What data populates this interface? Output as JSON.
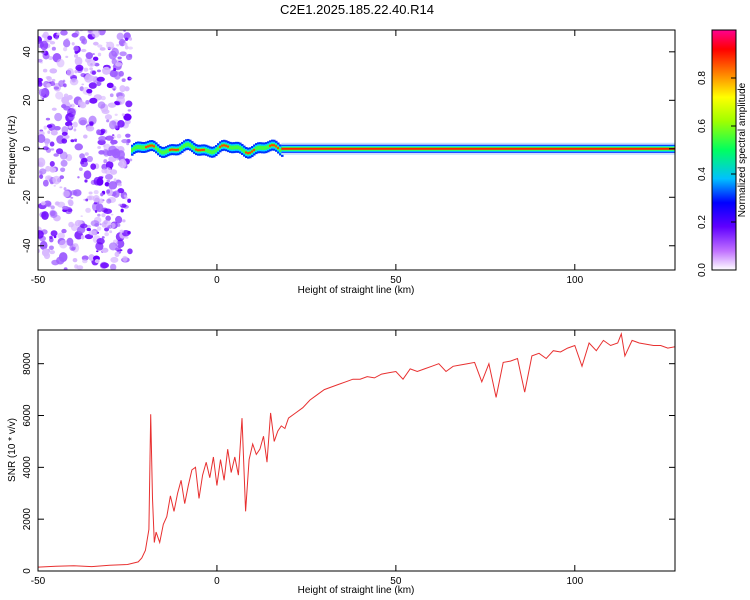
{
  "figure": {
    "title": "C2E1.2025.185.22.40.R14"
  },
  "chart_data": [
    {
      "type": "heatmap",
      "xlabel": "Height of straight line (km)",
      "ylabel": "Frequency (Hz)",
      "xlim": [
        -50,
        128
      ],
      "ylim": [
        -50,
        49
      ],
      "xticks": [
        "-50",
        "0",
        "50",
        "100"
      ],
      "yticks": [
        "-40",
        "-20",
        "0",
        "20",
        "40"
      ],
      "xtick_values": [
        -50,
        0,
        50,
        100
      ],
      "ytick_values": [
        -40,
        -20,
        0,
        20,
        40
      ],
      "regions": [
        {
          "x": [
            -50,
            -24
          ],
          "y": [
            -50,
            49
          ],
          "description": "scattered noise"
        },
        {
          "x": [
            -24,
            18
          ],
          "y": [
            -4,
            4
          ],
          "description": "wavy band near 0 Hz"
        },
        {
          "x": [
            18,
            128
          ],
          "y": [
            -1.5,
            1.5
          ],
          "description": "steady band at 0 Hz"
        }
      ],
      "colorbar": {
        "label": "Normalized spectral amplitude",
        "ticks": [
          "0.0",
          "0.2",
          "0.4",
          "0.6",
          "0.8"
        ],
        "tick_values": [
          0.0,
          0.2,
          0.4,
          0.6,
          0.8
        ],
        "range": [
          0,
          1
        ],
        "colors": [
          "#ffffff",
          "#a000ff",
          "#0000ff",
          "#00ffff",
          "#00ff00",
          "#ffff00",
          "#ff8000",
          "#ff0000",
          "#ff0080"
        ]
      }
    },
    {
      "type": "line",
      "xlabel": "Height of straight line (km)",
      "ylabel": "SNR (10 * v/v)",
      "xlim": [
        -50,
        128
      ],
      "ylim": [
        0,
        9300
      ],
      "xticks": [
        "-50",
        "0",
        "50",
        "100"
      ],
      "yticks": [
        "0",
        "2000",
        "4000",
        "6000",
        "8000"
      ],
      "xtick_values": [
        -50,
        0,
        50,
        100
      ],
      "ytick_values": [
        0,
        2000,
        4000,
        6000,
        8000
      ],
      "color": "#e83030",
      "series": [
        {
          "x": [
            -50,
            -45,
            -40,
            -35,
            -30,
            -25,
            -22,
            -21,
            -20,
            -19,
            -18.5,
            -18,
            -17.5,
            -17,
            -16,
            -15,
            -14,
            -13,
            -12,
            -11,
            -10,
            -9,
            -8,
            -7,
            -6,
            -5,
            -4,
            -3,
            -2,
            -1,
            0,
            1,
            2,
            3,
            4,
            5,
            6,
            7,
            8,
            9,
            10,
            11,
            12,
            13,
            14,
            15,
            16,
            17,
            18,
            19,
            20,
            22,
            24,
            26,
            28,
            30,
            32,
            34,
            36,
            38,
            40,
            42,
            44,
            46,
            48,
            50,
            52,
            54,
            56,
            58,
            60,
            62,
            64,
            66,
            68,
            70,
            72,
            74,
            76,
            78,
            80,
            82,
            84,
            86,
            88,
            90,
            92,
            94,
            96,
            98,
            100,
            102,
            104,
            106,
            108,
            110,
            112,
            113,
            114,
            115,
            116,
            118,
            120,
            122,
            124,
            126,
            128
          ],
          "y": [
            150,
            180,
            200,
            170,
            220,
            250,
            350,
            500,
            800,
            1600,
            6050,
            2800,
            1100,
            1500,
            1100,
            1800,
            2100,
            2900,
            2300,
            3000,
            3500,
            2600,
            3300,
            3900,
            4000,
            2800,
            3700,
            4200,
            3600,
            4400,
            3300,
            4300,
            3500,
            4700,
            3800,
            4400,
            3700,
            5900,
            2300,
            4300,
            4900,
            4500,
            4700,
            5200,
            4200,
            6100,
            5000,
            5400,
            5600,
            5500,
            5900,
            6100,
            6300,
            6600,
            6800,
            7000,
            7100,
            7200,
            7300,
            7400,
            7400,
            7500,
            7450,
            7600,
            7650,
            7700,
            7400,
            7800,
            7700,
            7800,
            7900,
            8000,
            7700,
            7900,
            7950,
            8000,
            8050,
            7300,
            8000,
            6700,
            8050,
            8100,
            8200,
            6900,
            8300,
            8400,
            8200,
            8500,
            8450,
            8600,
            8700,
            7900,
            8800,
            8500,
            8900,
            8700,
            8800,
            9150,
            8300,
            8600,
            8900,
            8800,
            8750,
            8700,
            8700,
            8600,
            8650
          ]
        }
      ]
    }
  ]
}
